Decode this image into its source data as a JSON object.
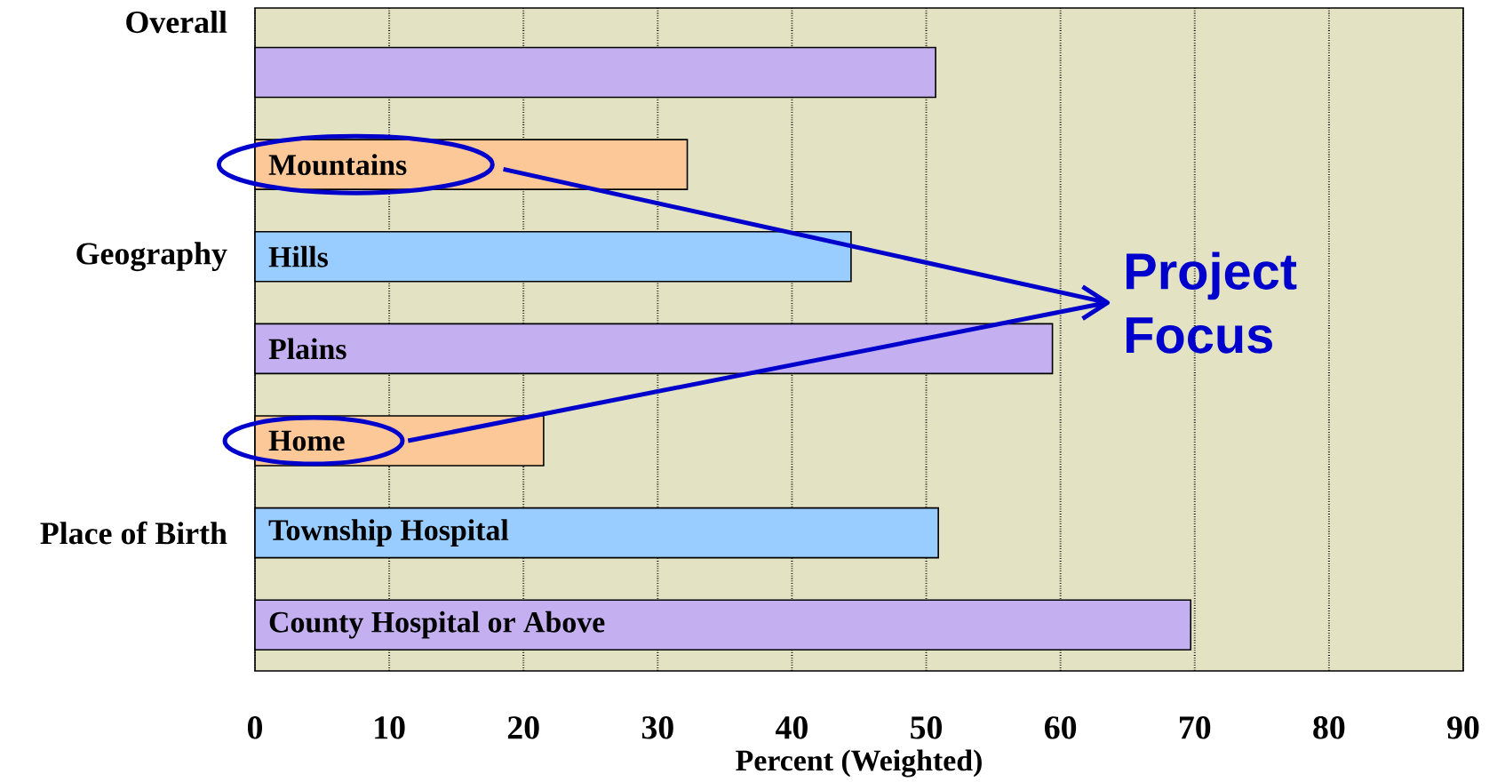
{
  "chart_data": {
    "type": "bar",
    "orientation": "horizontal",
    "categories": [
      null,
      "Mountains",
      "Hills",
      "Plains",
      "Home",
      "Township Hospital",
      "County Hospital or Above"
    ],
    "values": [
      50.7,
      32.2,
      44.4,
      59.4,
      21.5,
      50.9,
      69.7
    ],
    "colors": [
      "#c4b0f0",
      "#fdc898",
      "#99ccff",
      "#c4b0f0",
      "#fdc898",
      "#99ccff",
      "#c4b0f0"
    ],
    "xlim": [
      0,
      90
    ],
    "xticks": [
      0,
      10,
      20,
      30,
      40,
      50,
      60,
      70,
      80,
      90
    ],
    "xlabel": "Percent (Weighted)",
    "grid": "x",
    "annotations": [
      "Overall",
      "Geography",
      "Place of Birth",
      "Project Focus"
    ]
  }
}
